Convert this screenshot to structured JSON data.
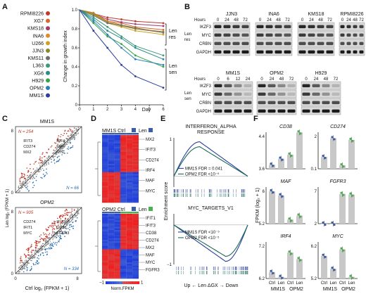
{
  "panel_labels": {
    "a": "A",
    "b": "B",
    "c": "C",
    "d": "D",
    "e": "E",
    "f": "F"
  },
  "panelA": {
    "cell_lines": [
      {
        "name": "RPMI8226",
        "color": "#c0392b"
      },
      {
        "name": "XG7",
        "color": "#d46a2a"
      },
      {
        "name": "KMS18",
        "color": "#a33b6b"
      },
      {
        "name": "INA6",
        "color": "#e08a2c"
      },
      {
        "name": "U266",
        "color": "#c9a227"
      },
      {
        "name": "JJN3",
        "color": "#8a8a2a"
      },
      {
        "name": "KMS11",
        "color": "#6f6f6f"
      },
      {
        "name": "L363",
        "color": "#3a9a7a"
      },
      {
        "name": "XG6",
        "color": "#2e8b8b"
      },
      {
        "name": "H929",
        "color": "#3aa34a"
      },
      {
        "name": "OPM2",
        "color": "#2a7fbf"
      },
      {
        "name": "MM1S",
        "color": "#2c3e9a"
      }
    ],
    "ylabel": "Change in growth index",
    "xlabel": "Day",
    "yticks": [
      "0",
      "0.2",
      "0.4",
      "0.6",
      "0.8",
      "1.0"
    ],
    "xticks": [
      "0",
      "1",
      "2",
      "3",
      "4",
      "5",
      "6"
    ],
    "group_res": "Len\nres",
    "group_sen": "Len\nsen"
  },
  "chart_data": {
    "type": "line",
    "xlabel": "Day",
    "ylabel": "Change in growth index",
    "xlim": [
      0,
      6
    ],
    "ylim": [
      0,
      1.0
    ],
    "x": [
      1,
      2,
      3,
      4,
      6
    ],
    "series": [
      {
        "name": "RPMI8226",
        "values": [
          0.96,
          0.92,
          0.9,
          0.88,
          0.86
        ]
      },
      {
        "name": "XG7",
        "values": [
          0.95,
          0.88,
          0.86,
          0.82,
          0.79
        ]
      },
      {
        "name": "KMS18",
        "values": [
          0.96,
          0.9,
          0.87,
          0.85,
          0.83
        ]
      },
      {
        "name": "INA6",
        "values": [
          0.97,
          0.88,
          0.84,
          0.8,
          0.76
        ]
      },
      {
        "name": "U266",
        "values": [
          0.95,
          0.86,
          0.82,
          0.78,
          0.74
        ]
      },
      {
        "name": "JJN3",
        "values": [
          0.96,
          0.87,
          0.83,
          0.8,
          0.77
        ]
      },
      {
        "name": "KMS11",
        "values": [
          0.94,
          0.86,
          0.84,
          0.81,
          0.76
        ]
      },
      {
        "name": "L363",
        "values": [
          0.92,
          0.82,
          0.72,
          0.62,
          0.52
        ]
      },
      {
        "name": "XG6",
        "values": [
          0.9,
          0.78,
          0.7,
          0.6,
          0.48
        ]
      },
      {
        "name": "H929",
        "values": [
          0.86,
          0.72,
          0.64,
          0.52,
          0.4
        ]
      },
      {
        "name": "OPM2",
        "values": [
          0.88,
          0.74,
          0.6,
          0.48,
          0.42
        ]
      },
      {
        "name": "MM1S",
        "values": [
          0.78,
          0.6,
          0.42,
          0.3,
          0.18
        ]
      }
    ]
  },
  "panelB": {
    "hours": "Hours",
    "res_label": "Len\nres",
    "sen_label": "Len\nsen",
    "top_groups": [
      {
        "name": "JJN3",
        "times": [
          "0",
          "24",
          "48",
          "72"
        ]
      },
      {
        "name": "INA6",
        "times": [
          "0",
          "24",
          "48",
          "72"
        ]
      },
      {
        "name": "KMS18",
        "times": [
          "0",
          "24",
          "48",
          "72"
        ]
      },
      {
        "name": "RPMI8226",
        "times": [
          "0",
          "24",
          "48",
          "72"
        ]
      }
    ],
    "bottom_groups": [
      {
        "name": "MM1S",
        "times": [
          "0",
          "6",
          "12",
          "24"
        ]
      },
      {
        "name": "OPM2",
        "times": [
          "0",
          "24",
          "48",
          "72"
        ]
      },
      {
        "name": "H929",
        "times": [
          "0",
          "24",
          "48",
          "72"
        ]
      }
    ],
    "proteins": [
      "IKZF3",
      "MYC",
      "CRBN",
      "GAPDH"
    ]
  },
  "panelC": {
    "top_title": "MM1S",
    "bottom_title": "OPM2",
    "top_n_up": "N = 254",
    "top_n_down": "N = 66",
    "bottom_n_up": "N = 905",
    "bottom_n_down": "N = 334",
    "ylabel": "Len log₂ (FPKM + 1)",
    "xlabel": "Ctrl log₂ (FPKM + 1)",
    "ticks": [
      "0",
      "8"
    ],
    "top_genes": [
      "IRF4",
      "MAF",
      "MYC",
      "IFIT3",
      "CD274",
      "MX2"
    ],
    "bottom_genes": [
      "IFIT3",
      "CD38",
      "FGFR3",
      "CD274",
      "IFIT1",
      "MYC"
    ]
  },
  "panelD": {
    "top_ctrl": "MM1S Ctrl",
    "top_len": "Len",
    "bottom_ctrl": "OPM2 Ctrl",
    "bottom_len": "Len",
    "top_genes": [
      "MX2",
      "IFIT3",
      "CD274",
      "IRF4",
      "MAF",
      "MYC"
    ],
    "bottom_genes": [
      "IFIT1",
      "IFIT3",
      "CD38",
      "CD274",
      "MX2",
      "MAF",
      "MYC",
      "FGFR3"
    ],
    "scale_min": "−1",
    "scale_max": "1",
    "scale_label": "Norm.FPKM"
  },
  "panelE": {
    "top_title": "INTERFERON_ALPHA\nRESPONSE",
    "bottom_title": "MYC_TARGETS_V1",
    "ylabel": "Enrichment score",
    "top_leg1": "MM1S FDR = 0.041",
    "top_leg2": "OPM2 FDR <10⁻⁵",
    "bottom_leg1": "MM1S FDR <10⁻⁵",
    "bottom_leg2": "OPM2 FDR <10⁻⁵",
    "tick_top": "1",
    "tick_bottom": "−1",
    "xlabel": "Up ← Len ΔGX → Down"
  },
  "panelF": {
    "ylabel": "FPKM (log₂ + 1)",
    "genes": [
      {
        "name": "CD38",
        "yticks": [
          "3.6",
          "4.4"
        ],
        "bars": [
          3.7,
          3.85,
          3.95,
          4.5
        ]
      },
      {
        "name": "CD274",
        "yticks": [
          "0.1",
          "2"
        ],
        "bars": [
          0.8,
          1.9,
          0.3,
          1.8
        ]
      },
      {
        "name": "MAF",
        "yticks": [
          "5.2",
          "6"
        ],
        "bars": [
          6.0,
          5.9,
          5.3,
          5.4
        ]
      },
      {
        "name": "FGFR3",
        "yticks": [
          "2",
          "7"
        ],
        "bars": [
          2.0,
          2.0,
          6.6,
          6.5
        ]
      },
      {
        "name": "IRF4",
        "yticks": [
          "6.2",
          "7.2"
        ],
        "bars": [
          6.4,
          6.25,
          7.0,
          6.8
        ]
      },
      {
        "name": "MYC",
        "yticks": [
          "5.2",
          "6.2"
        ],
        "bars": [
          5.9,
          5.5,
          6.1,
          5.25
        ]
      }
    ],
    "xticks": [
      "Ctrl",
      "Len",
      "Ctrl",
      "Len"
    ],
    "groups": [
      "MM1S",
      "OPM2"
    ]
  }
}
